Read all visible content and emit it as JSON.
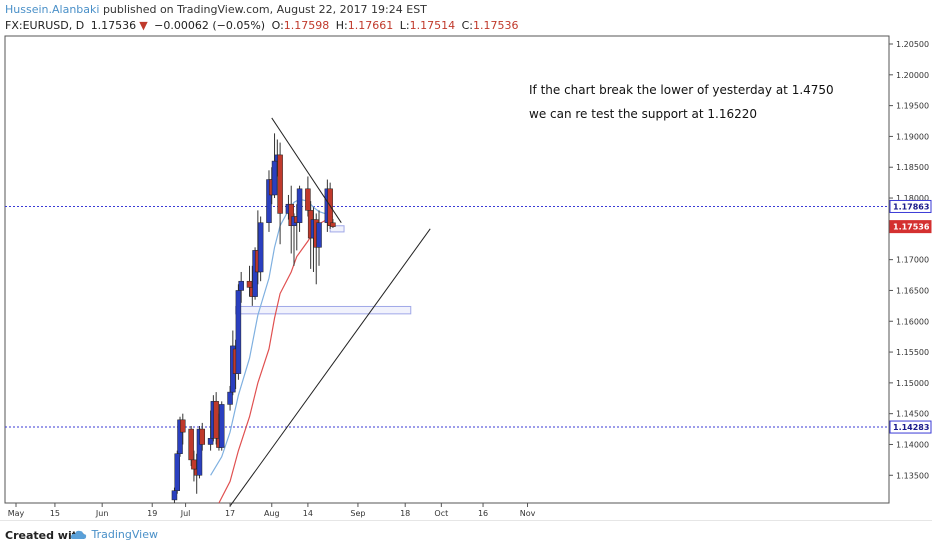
{
  "header": {
    "author": "Hussein.Alanbaki",
    "published_text": "published on TradingView.com, August 22, 2017 19:24 EST",
    "symbol": "FX:EURUSD, D",
    "last": "1.17536",
    "arrow": "▼",
    "change": "−0.00062 (−0.05%)",
    "o_label": "O:",
    "o_value": "1.17598",
    "h_label": "H:",
    "h_value": "1.17661",
    "l_label": "L:",
    "l_value": "1.17514",
    "c_label": "C:",
    "c_value": "1.17536"
  },
  "footer": {
    "created_with": "Created with",
    "brand": "TradingView"
  },
  "chart_data": {
    "type": "candlestick",
    "symbol": "FX:EURUSD",
    "timeframe": "D",
    "ylim": [
      1.1305,
      1.2063
    ],
    "y_ticks": [
      "1.20500",
      "1.20000",
      "1.19500",
      "1.19000",
      "1.18500",
      "1.18000",
      "1.17500",
      "1.17000",
      "1.16500",
      "1.16000",
      "1.15500",
      "1.15000",
      "1.14500",
      "1.14000",
      "1.13500"
    ],
    "x_ticks": [
      "May",
      "15",
      "Jun",
      "19",
      "Jul",
      "17",
      "Aug",
      "14",
      "Sep",
      "18",
      "Oct",
      "16",
      "Nov"
    ],
    "price_labels": [
      {
        "text": "1.17863",
        "value": 1.17863,
        "style": "outline"
      },
      {
        "text": "1.17536",
        "value": 1.17536,
        "style": "red"
      },
      {
        "text": "1.14283",
        "value": 1.14283,
        "style": "outline"
      }
    ],
    "annotation_lines": [
      "If the chart break the lower of yesterday at 1.4750",
      "we can re test the support at 1.16220"
    ],
    "colors": {
      "up": "#2a3fbf",
      "down": "#c0392b",
      "ma_fast": "#7fb0e0",
      "ma_slow": "#e05050",
      "hline": "#3a3ad6",
      "trend": "#222222",
      "zone": "#a0a8e8"
    },
    "candles": [
      {
        "d": "2017-06-27",
        "o": 1.131,
        "h": 1.133,
        "l": 1.1305,
        "c": 1.1325
      },
      {
        "d": "2017-06-28",
        "o": 1.1325,
        "h": 1.139,
        "l": 1.132,
        "c": 1.1385
      },
      {
        "d": "2017-06-29",
        "o": 1.1385,
        "h": 1.1445,
        "l": 1.138,
        "c": 1.144
      },
      {
        "d": "2017-06-30",
        "o": 1.144,
        "h": 1.145,
        "l": 1.14,
        "c": 1.142
      },
      {
        "d": "2017-07-03",
        "o": 1.1425,
        "h": 1.143,
        "l": 1.1365,
        "c": 1.1375
      },
      {
        "d": "2017-07-04",
        "o": 1.1375,
        "h": 1.139,
        "l": 1.134,
        "c": 1.136
      },
      {
        "d": "2017-07-05",
        "o": 1.136,
        "h": 1.1385,
        "l": 1.132,
        "c": 1.135
      },
      {
        "d": "2017-07-06",
        "o": 1.135,
        "h": 1.143,
        "l": 1.1345,
        "c": 1.1425
      },
      {
        "d": "2017-07-07",
        "o": 1.1425,
        "h": 1.1435,
        "l": 1.139,
        "c": 1.14
      },
      {
        "d": "2017-07-10",
        "o": 1.14,
        "h": 1.1455,
        "l": 1.139,
        "c": 1.141
      },
      {
        "d": "2017-07-11",
        "o": 1.141,
        "h": 1.148,
        "l": 1.1405,
        "c": 1.147
      },
      {
        "d": "2017-07-12",
        "o": 1.147,
        "h": 1.1485,
        "l": 1.14,
        "c": 1.141
      },
      {
        "d": "2017-07-13",
        "o": 1.141,
        "h": 1.145,
        "l": 1.139,
        "c": 1.1395
      },
      {
        "d": "2017-07-14",
        "o": 1.1395,
        "h": 1.147,
        "l": 1.139,
        "c": 1.1465
      },
      {
        "d": "2017-07-17",
        "o": 1.1465,
        "h": 1.1495,
        "l": 1.1455,
        "c": 1.1485
      },
      {
        "d": "2017-07-18",
        "o": 1.1485,
        "h": 1.1585,
        "l": 1.148,
        "c": 1.156
      },
      {
        "d": "2017-07-19",
        "o": 1.1555,
        "h": 1.157,
        "l": 1.149,
        "c": 1.1515
      },
      {
        "d": "2017-07-20",
        "o": 1.1515,
        "h": 1.166,
        "l": 1.1505,
        "c": 1.165
      },
      {
        "d": "2017-07-21",
        "o": 1.165,
        "h": 1.168,
        "l": 1.163,
        "c": 1.1665
      },
      {
        "d": "2017-07-24",
        "o": 1.1665,
        "h": 1.169,
        "l": 1.164,
        "c": 1.1655
      },
      {
        "d": "2017-07-25",
        "o": 1.1655,
        "h": 1.169,
        "l": 1.1625,
        "c": 1.164
      },
      {
        "d": "2017-07-26",
        "o": 1.164,
        "h": 1.172,
        "l": 1.1635,
        "c": 1.1715
      },
      {
        "d": "2017-07-27",
        "o": 1.1715,
        "h": 1.178,
        "l": 1.166,
        "c": 1.168
      },
      {
        "d": "2017-07-28",
        "o": 1.168,
        "h": 1.177,
        "l": 1.1665,
        "c": 1.176
      },
      {
        "d": "2017-07-31",
        "o": 1.176,
        "h": 1.1845,
        "l": 1.1745,
        "c": 1.183
      },
      {
        "d": "2017-08-01",
        "o": 1.183,
        "h": 1.185,
        "l": 1.179,
        "c": 1.1805
      },
      {
        "d": "2017-08-02",
        "o": 1.1805,
        "h": 1.1905,
        "l": 1.18,
        "c": 1.186
      },
      {
        "d": "2017-08-03",
        "o": 1.186,
        "h": 1.1895,
        "l": 1.1835,
        "c": 1.187
      },
      {
        "d": "2017-08-04",
        "o": 1.187,
        "h": 1.189,
        "l": 1.1725,
        "c": 1.1775
      },
      {
        "d": "2017-08-07",
        "o": 1.1775,
        "h": 1.1805,
        "l": 1.1765,
        "c": 1.179
      },
      {
        "d": "2017-08-08",
        "o": 1.179,
        "h": 1.182,
        "l": 1.171,
        "c": 1.1755
      },
      {
        "d": "2017-08-09",
        "o": 1.1755,
        "h": 1.1775,
        "l": 1.169,
        "c": 1.177
      },
      {
        "d": "2017-08-10",
        "o": 1.177,
        "h": 1.179,
        "l": 1.1715,
        "c": 1.176
      },
      {
        "d": "2017-08-11",
        "o": 1.176,
        "h": 1.182,
        "l": 1.1745,
        "c": 1.1815
      },
      {
        "d": "2017-08-14",
        "o": 1.1815,
        "h": 1.1835,
        "l": 1.177,
        "c": 1.178
      },
      {
        "d": "2017-08-15",
        "o": 1.178,
        "h": 1.1795,
        "l": 1.1685,
        "c": 1.1735
      },
      {
        "d": "2017-08-16",
        "o": 1.1735,
        "h": 1.1785,
        "l": 1.168,
        "c": 1.1765
      },
      {
        "d": "2017-08-17",
        "o": 1.1765,
        "h": 1.1775,
        "l": 1.166,
        "c": 1.172
      },
      {
        "d": "2017-08-18",
        "o": 1.172,
        "h": 1.178,
        "l": 1.169,
        "c": 1.176
      },
      {
        "d": "2017-08-21",
        "o": 1.176,
        "h": 1.183,
        "l": 1.1745,
        "c": 1.1815
      },
      {
        "d": "2017-08-22",
        "o": 1.1815,
        "h": 1.1825,
        "l": 1.175,
        "c": 1.1755
      },
      {
        "d": "2017-08-23",
        "o": 1.17598,
        "h": 1.17661,
        "l": 1.17514,
        "c": 1.17536
      }
    ],
    "ma_fast": [
      [
        "2017-07-10",
        1.135
      ],
      [
        "2017-07-14",
        1.138
      ],
      [
        "2017-07-17",
        1.142
      ],
      [
        "2017-07-20",
        1.148
      ],
      [
        "2017-07-24",
        1.154
      ],
      [
        "2017-07-27",
        1.161
      ],
      [
        "2017-07-31",
        1.167
      ],
      [
        "2017-08-02",
        1.172
      ],
      [
        "2017-08-04",
        1.1755
      ],
      [
        "2017-08-07",
        1.178
      ],
      [
        "2017-08-09",
        1.1793
      ],
      [
        "2017-08-11",
        1.1798
      ],
      [
        "2017-08-14",
        1.1795
      ],
      [
        "2017-08-16",
        1.1785
      ],
      [
        "2017-08-18",
        1.1778
      ],
      [
        "2017-08-22",
        1.1772
      ],
      [
        "2017-08-23",
        1.177
      ]
    ],
    "ma_slow": [
      [
        "2017-07-13",
        1.1305
      ],
      [
        "2017-07-17",
        1.134
      ],
      [
        "2017-07-20",
        1.139
      ],
      [
        "2017-07-24",
        1.1445
      ],
      [
        "2017-07-27",
        1.15
      ],
      [
        "2017-07-31",
        1.1555
      ],
      [
        "2017-08-02",
        1.1605
      ],
      [
        "2017-08-04",
        1.1645
      ],
      [
        "2017-08-08",
        1.168
      ],
      [
        "2017-08-10",
        1.1705
      ],
      [
        "2017-08-14",
        1.173
      ],
      [
        "2017-08-16",
        1.1745
      ],
      [
        "2017-08-18",
        1.1758
      ],
      [
        "2017-08-22",
        1.1768
      ],
      [
        "2017-08-23",
        1.177
      ]
    ],
    "hlines": [
      1.17863,
      1.14283
    ],
    "zone": {
      "d1": "2017-07-19",
      "d2": "2017-09-20",
      "p1": 1.1612,
      "p2": 1.1624
    },
    "small_box": {
      "d1": "2017-08-22",
      "d2": "2017-08-27",
      "p1": 1.1745,
      "p2": 1.1755
    },
    "trendlines": [
      {
        "d1": "2017-08-01",
        "p1": 1.193,
        "d2": "2017-08-26",
        "p2": 1.176
      },
      {
        "d1": "2017-07-17",
        "p1": 1.13,
        "d2": "2017-09-27",
        "p2": 1.175
      }
    ]
  }
}
